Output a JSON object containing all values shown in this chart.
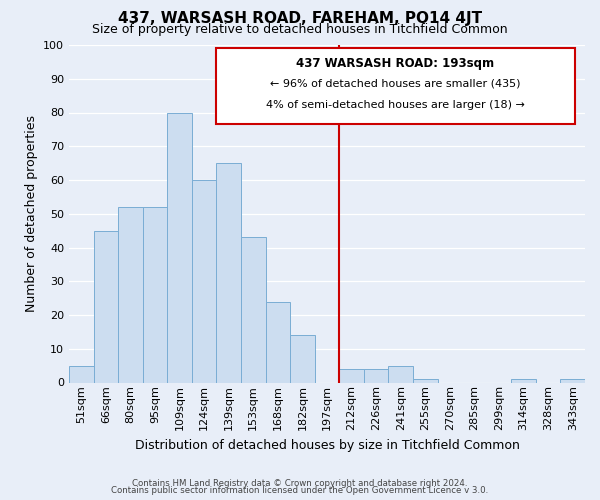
{
  "title": "437, WARSASH ROAD, FAREHAM, PO14 4JT",
  "subtitle": "Size of property relative to detached houses in Titchfield Common",
  "xlabel": "Distribution of detached houses by size in Titchfield Common",
  "ylabel": "Number of detached properties",
  "footer_line1": "Contains HM Land Registry data © Crown copyright and database right 2024.",
  "footer_line2": "Contains public sector information licensed under the Open Government Licence v 3.0.",
  "bin_labels": [
    "51sqm",
    "66sqm",
    "80sqm",
    "95sqm",
    "109sqm",
    "124sqm",
    "139sqm",
    "153sqm",
    "168sqm",
    "182sqm",
    "197sqm",
    "212sqm",
    "226sqm",
    "241sqm",
    "255sqm",
    "270sqm",
    "285sqm",
    "299sqm",
    "314sqm",
    "328sqm",
    "343sqm"
  ],
  "bar_heights": [
    5,
    45,
    52,
    52,
    80,
    60,
    65,
    43,
    24,
    14,
    0,
    4,
    4,
    5,
    1,
    0,
    0,
    0,
    1,
    0,
    1
  ],
  "bar_color": "#ccddf0",
  "bar_edge_color": "#7aadd4",
  "vline_x": 10.5,
  "vline_color": "#cc0000",
  "annotation_title": "437 WARSASH ROAD: 193sqm",
  "annotation_line1": "← 96% of detached houses are smaller (435)",
  "annotation_line2": "4% of semi-detached houses are larger (18) →",
  "annotation_box_color": "#ffffff",
  "annotation_border_color": "#cc0000",
  "ylim": [
    0,
    100
  ],
  "yticks": [
    0,
    10,
    20,
    30,
    40,
    50,
    60,
    70,
    80,
    90,
    100
  ],
  "background_color": "#e8eef8",
  "grid_color": "#ffffff",
  "title_fontsize": 11,
  "subtitle_fontsize": 9,
  "xlabel_fontsize": 9,
  "ylabel_fontsize": 9,
  "tick_fontsize": 8,
  "annot_title_fontsize": 8.5,
  "annot_text_fontsize": 8
}
